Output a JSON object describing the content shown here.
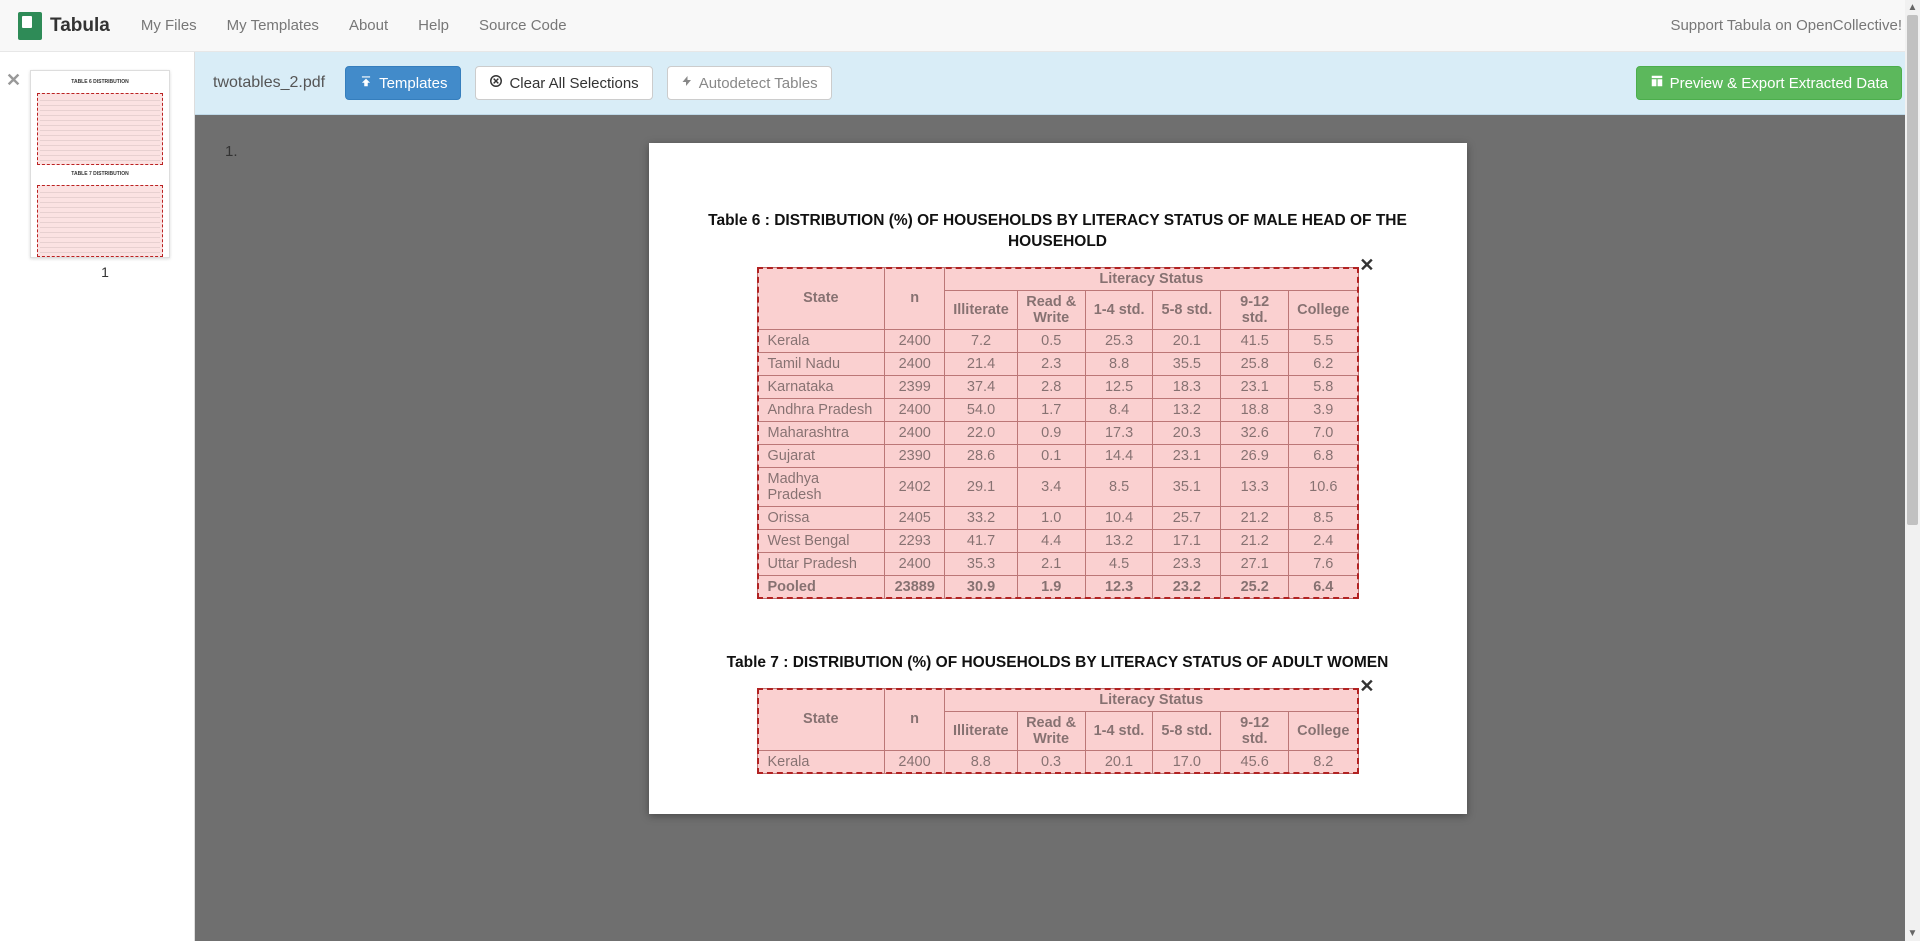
{
  "nav": {
    "brand": "Tabula",
    "links": [
      "My Files",
      "My Templates",
      "About",
      "Help",
      "Source Code"
    ],
    "support": "Support Tabula on OpenCollective!"
  },
  "toolbar": {
    "filename": "twotables_2.pdf",
    "templates_btn": "Templates",
    "clear_btn": "Clear All Selections",
    "autodetect_btn": "Autodetect Tables",
    "export_btn": "Preview & Export Extracted Data"
  },
  "sidebar": {
    "page_num": "1"
  },
  "page": {
    "number_label": "1."
  },
  "table6": {
    "title": "Table 6 : DISTRIBUTION (%) OF HOUSEHOLDS BY LITERACY STATUS OF MALE HEAD OF THE HOUSEHOLD",
    "header_state": "State",
    "header_n": "n",
    "header_group": "Literacy Status",
    "cols": [
      "Illiterate",
      "Read & Write",
      "1-4 std.",
      "5-8 std.",
      "9-12 std.",
      "College"
    ],
    "rows": [
      {
        "state": "Kerala",
        "n": "2400",
        "v": [
          "7.2",
          "0.5",
          "25.3",
          "20.1",
          "41.5",
          "5.5"
        ]
      },
      {
        "state": "Tamil Nadu",
        "n": "2400",
        "v": [
          "21.4",
          "2.3",
          "8.8",
          "35.5",
          "25.8",
          "6.2"
        ]
      },
      {
        "state": "Karnataka",
        "n": "2399",
        "v": [
          "37.4",
          "2.8",
          "12.5",
          "18.3",
          "23.1",
          "5.8"
        ]
      },
      {
        "state": "Andhra Pradesh",
        "n": "2400",
        "v": [
          "54.0",
          "1.7",
          "8.4",
          "13.2",
          "18.8",
          "3.9"
        ]
      },
      {
        "state": "Maharashtra",
        "n": "2400",
        "v": [
          "22.0",
          "0.9",
          "17.3",
          "20.3",
          "32.6",
          "7.0"
        ]
      },
      {
        "state": "Gujarat",
        "n": "2390",
        "v": [
          "28.6",
          "0.1",
          "14.4",
          "23.1",
          "26.9",
          "6.8"
        ]
      },
      {
        "state": "Madhya Pradesh",
        "n": "2402",
        "v": [
          "29.1",
          "3.4",
          "8.5",
          "35.1",
          "13.3",
          "10.6"
        ]
      },
      {
        "state": "Orissa",
        "n": "2405",
        "v": [
          "33.2",
          "1.0",
          "10.4",
          "25.7",
          "21.2",
          "8.5"
        ]
      },
      {
        "state": "West Bengal",
        "n": "2293",
        "v": [
          "41.7",
          "4.4",
          "13.2",
          "17.1",
          "21.2",
          "2.4"
        ]
      },
      {
        "state": "Uttar Pradesh",
        "n": "2400",
        "v": [
          "35.3",
          "2.1",
          "4.5",
          "23.3",
          "27.1",
          "7.6"
        ]
      }
    ],
    "pooled": {
      "state": "Pooled",
      "n": "23889",
      "v": [
        "30.9",
        "1.9",
        "12.3",
        "23.2",
        "25.2",
        "6.4"
      ]
    }
  },
  "table7": {
    "title": "Table 7 : DISTRIBUTION (%) OF HOUSEHOLDS BY LITERACY STATUS OF ADULT WOMEN",
    "header_state": "State",
    "header_n": "n",
    "header_group": "Literacy Status",
    "cols": [
      "Illiterate",
      "Read & Write",
      "1-4 std.",
      "5-8 std.",
      "9-12 std.",
      "College"
    ],
    "rows": [
      {
        "state": "Kerala",
        "n": "2400",
        "v": [
          "8.8",
          "0.3",
          "20.1",
          "17.0",
          "45.6",
          "8.2"
        ]
      }
    ]
  },
  "colors": {
    "toolbar_bg": "#d9edf7",
    "selection_border": "#b22222",
    "selection_fill": "#f8cfcf",
    "btn_primary": "#428bca",
    "btn_success": "#5cb85c",
    "page_bg_dark": "#6f6f6f"
  }
}
